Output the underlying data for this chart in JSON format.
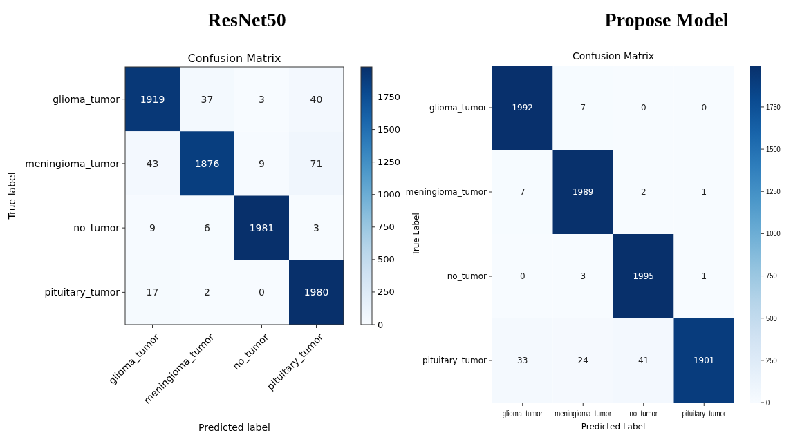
{
  "chart_data": [
    {
      "type": "heatmap",
      "title": "ResNet50",
      "subtitle": "Confusion Matrix",
      "xlabel": "Predicted label",
      "ylabel": "True label",
      "categories": [
        "glioma_tumor",
        "meningioma_tumor",
        "no_tumor",
        "pituitary_tumor"
      ],
      "y_categories": [
        "glioma_tumor",
        "meningioma_tumor",
        "no_tumor",
        "pituitary_tumor"
      ],
      "cells": [
        [
          1919,
          37,
          3,
          40
        ],
        [
          43,
          1876,
          9,
          71
        ],
        [
          9,
          6,
          1981,
          3
        ],
        [
          17,
          2,
          0,
          1980
        ]
      ],
      "clim": [
        0,
        1981
      ],
      "cticks": [
        0,
        250,
        500,
        750,
        1000,
        1250,
        1500,
        1750
      ],
      "data_labels": true
    },
    {
      "type": "heatmap",
      "title": "Propose Model",
      "subtitle": "Confusion Matrix",
      "xlabel": "Predicted Label",
      "ylabel": "True Label",
      "categories": [
        "glioma_tumor",
        "meningioma_tumor",
        "no_tumor",
        "pituitary_tumor"
      ],
      "y_categories": [
        "glioma_tumor",
        "meningioma_tumor",
        "no_tumor",
        "pituitary_tumor"
      ],
      "cells": [
        [
          1992,
          7,
          0,
          0
        ],
        [
          7,
          1989,
          2,
          1
        ],
        [
          0,
          3,
          1995,
          1
        ],
        [
          33,
          24,
          41,
          1901
        ]
      ],
      "clim": [
        0,
        1995
      ],
      "cticks": [
        0,
        250,
        500,
        750,
        1000,
        1250,
        1500,
        1750
      ],
      "data_labels": true
    }
  ]
}
